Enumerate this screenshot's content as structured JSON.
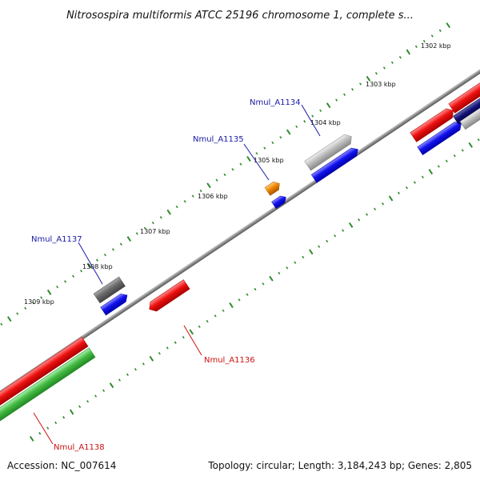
{
  "title": "Nitrosospira multiformis ATCC 25196 chromosome 1, complete s...",
  "footer": {
    "accession": "Accession: NC_007614",
    "stats": "Topology: circular; Length: 3,184,243 bp; Genes: 2,805"
  },
  "colors": {
    "backbone": "#8a8a8a",
    "tick": "#2e8b2e",
    "label_positive": "#1a1aa6",
    "label_negative": "#cc1111",
    "red": "#ee1111",
    "blue": "#1111ee",
    "green": "#44bb44",
    "gray": "#bdbdbd",
    "darkgray": "#6a6a6a",
    "orange": "#ee8800",
    "navy": "#111177"
  },
  "scale_labels": [
    "1302 kbp",
    "1303 kbp",
    "1304 kbp",
    "1305 kbp",
    "1306 kbp",
    "1307 kbp",
    "1308 kbp",
    "1309 kbp"
  ],
  "genes": [
    {
      "name": "Nmul_A1134",
      "strand": "+",
      "color": "gray"
    },
    {
      "name": "Nmul_A1135",
      "strand": "+",
      "color": "orange"
    },
    {
      "name": "Nmul_A1136",
      "strand": "-",
      "color": "red"
    },
    {
      "name": "Nmul_A1137",
      "strand": "+",
      "color": "darkgray"
    },
    {
      "name": "Nmul_A1138",
      "strand": "-",
      "color": "green"
    }
  ]
}
